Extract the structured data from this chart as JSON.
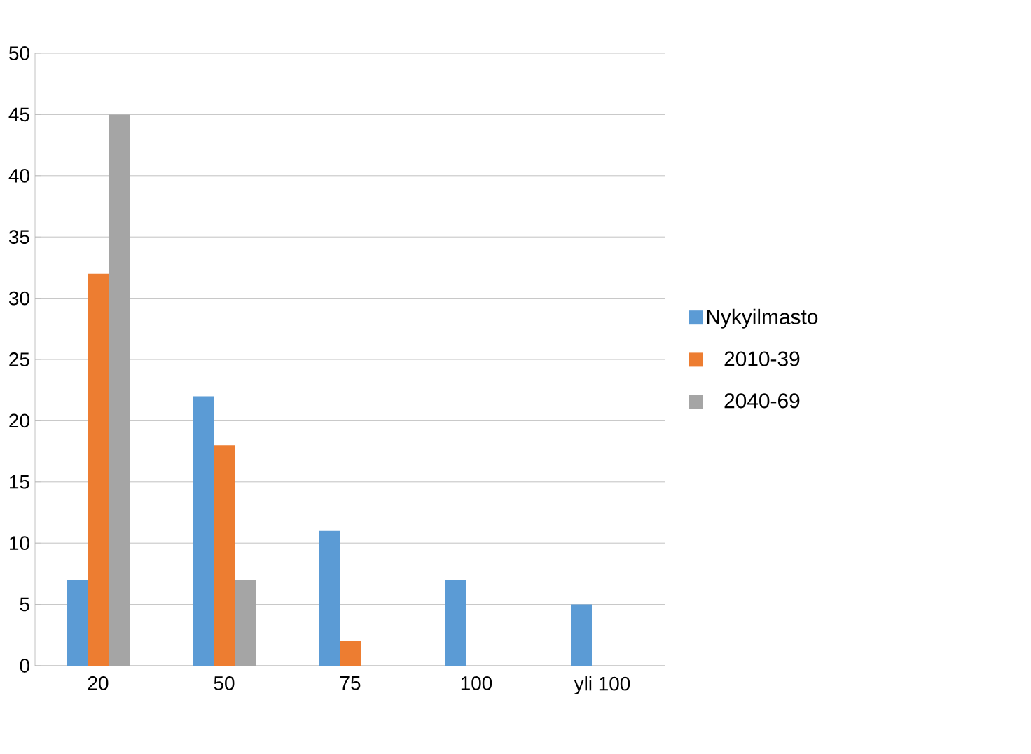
{
  "chart_data": {
    "type": "bar",
    "categories": [
      "20",
      "50",
      "75",
      "100",
      "yli 100"
    ],
    "series": [
      {
        "name": "Nykyilmasto",
        "color": "#5b9bd5",
        "values": [
          7,
          22,
          11,
          7,
          5
        ]
      },
      {
        "name": "2010-39",
        "color": "#ed7d31",
        "values": [
          32,
          18,
          2,
          0,
          0
        ]
      },
      {
        "name": "2040-69",
        "color": "#a5a5a5",
        "values": [
          45,
          7,
          0,
          0,
          0
        ]
      }
    ],
    "ylim": [
      0,
      50
    ],
    "yticks": [
      0,
      5,
      10,
      15,
      20,
      25,
      30,
      35,
      40,
      45,
      50
    ],
    "grid": "y",
    "legend": "right"
  }
}
